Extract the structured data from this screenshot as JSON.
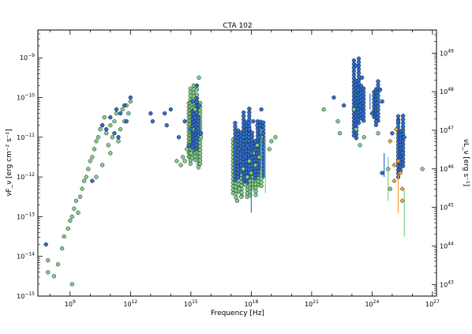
{
  "chart_data": {
    "type": "scatter",
    "title": "CTA 102",
    "xlabel": "Frequency [Hz]",
    "ylabel": "νF_ν [erg cm⁻² s⁻¹]",
    "ylabel_right": "νL_ν [erg s⁻¹]",
    "x_scale": "log",
    "y_scale": "log",
    "xlim_log10": [
      7.4,
      27.2
    ],
    "ylim_log10": [
      -15.0,
      -8.3
    ],
    "y2lim_log10": [
      42.7,
      49.6
    ],
    "grid": false,
    "x_ticks": [
      {
        "exp": 9,
        "base": "10",
        "sup": "9"
      },
      {
        "exp": 12,
        "base": "10",
        "sup": "12"
      },
      {
        "exp": 15,
        "base": "10",
        "sup": "15"
      },
      {
        "exp": 18,
        "base": "10",
        "sup": "18"
      },
      {
        "exp": 21,
        "base": "10",
        "sup": "21"
      },
      {
        "exp": 24,
        "base": "10",
        "sup": "24"
      },
      {
        "exp": 27,
        "base": "10",
        "sup": "27"
      }
    ],
    "y_ticks": [
      {
        "exp": -15,
        "base": "10",
        "sup": "−15"
      },
      {
        "exp": -14,
        "base": "10",
        "sup": "−14"
      },
      {
        "exp": -13,
        "base": "10",
        "sup": "−13"
      },
      {
        "exp": -12,
        "base": "10",
        "sup": "−12"
      },
      {
        "exp": -11,
        "base": "10",
        "sup": "−11"
      },
      {
        "exp": -10,
        "base": "10",
        "sup": "−10"
      },
      {
        "exp": -9,
        "base": "10",
        "sup": "−9"
      }
    ],
    "y2_ticks": [
      {
        "exp": 43,
        "base": "10",
        "sup": "43"
      },
      {
        "exp": 44,
        "base": "10",
        "sup": "44"
      },
      {
        "exp": 45,
        "base": "10",
        "sup": "45"
      },
      {
        "exp": 46,
        "base": "10",
        "sup": "46"
      },
      {
        "exp": 47,
        "base": "10",
        "sup": "47"
      },
      {
        "exp": 48,
        "base": "10",
        "sup": "48"
      },
      {
        "exp": 49,
        "base": "10",
        "sup": "49"
      }
    ],
    "colors": {
      "green": "#7fd08a",
      "blue": "#2e6fcf",
      "orange": "#f4a23a",
      "edge": "#1a1a1a"
    },
    "series": [
      {
        "color_key": "green",
        "points": [
          [
            7.9,
            -14.1
          ],
          [
            7.9,
            -14.4
          ],
          [
            8.2,
            -14.5
          ],
          [
            8.4,
            -14.2
          ],
          [
            8.6,
            -13.8
          ],
          [
            8.7,
            -13.5
          ],
          [
            8.9,
            -13.3
          ],
          [
            9.0,
            -13.1
          ],
          [
            9.1,
            -13.0
          ],
          [
            9.2,
            -12.8
          ],
          [
            9.3,
            -12.6
          ],
          [
            9.4,
            -12.9
          ],
          [
            9.5,
            -12.5
          ],
          [
            9.6,
            -12.3
          ],
          [
            9.7,
            -12.1
          ],
          [
            9.8,
            -12.0
          ],
          [
            9.9,
            -11.8
          ],
          [
            10.0,
            -11.6
          ],
          [
            10.1,
            -11.5
          ],
          [
            10.2,
            -11.3
          ],
          [
            10.3,
            -11.1
          ],
          [
            10.4,
            -11.0
          ],
          [
            10.5,
            -10.8
          ],
          [
            10.6,
            -10.7
          ],
          [
            10.7,
            -10.5
          ],
          [
            10.8,
            -10.9
          ],
          [
            10.9,
            -11.2
          ],
          [
            11.0,
            -10.7
          ],
          [
            11.1,
            -11.0
          ],
          [
            11.2,
            -10.6
          ],
          [
            11.3,
            -10.4
          ],
          [
            11.4,
            -11.1
          ],
          [
            11.5,
            -10.8
          ],
          [
            11.6,
            -10.3
          ],
          [
            11.7,
            -10.6
          ],
          [
            11.8,
            -10.2
          ],
          [
            11.9,
            -10.4
          ],
          [
            12.0,
            -10.1
          ],
          [
            9.1,
            -14.7
          ],
          [
            10.3,
            -12.0
          ],
          [
            10.6,
            -11.7
          ],
          [
            11.0,
            -11.4
          ],
          [
            14.3,
            -11.6
          ],
          [
            14.5,
            -11.7
          ],
          [
            14.6,
            -11.5
          ],
          [
            14.7,
            -11.6
          ],
          [
            14.8,
            -11.3
          ],
          [
            15.0,
            -11.4
          ],
          [
            15.1,
            -10.8
          ],
          [
            15.2,
            -10.3
          ],
          [
            15.3,
            -9.8
          ],
          [
            15.4,
            -9.5
          ],
          [
            15.5,
            -11.0
          ],
          [
            17.3,
            -12.6
          ],
          [
            17.4,
            -12.3
          ],
          [
            17.5,
            -12.5
          ],
          [
            17.6,
            -11.8
          ],
          [
            17.7,
            -12.2
          ],
          [
            17.8,
            -12.0
          ],
          [
            17.9,
            -11.6
          ],
          [
            18.0,
            -11.9
          ],
          [
            18.1,
            -11.4
          ],
          [
            18.2,
            -11.7
          ],
          [
            18.3,
            -11.2
          ],
          [
            18.4,
            -11.5
          ],
          [
            18.5,
            -11.0
          ],
          [
            18.9,
            -11.3
          ],
          [
            19.0,
            -11.1
          ],
          [
            19.2,
            -11.0
          ],
          [
            21.6,
            -10.3
          ],
          [
            22.3,
            -10.6
          ],
          [
            22.4,
            -10.9
          ],
          [
            23.1,
            -10.3
          ],
          [
            23.2,
            -10.8
          ],
          [
            23.4,
            -11.2
          ],
          [
            23.6,
            -11.0
          ],
          [
            24.3,
            -10.9
          ],
          [
            24.8,
            -11.8
          ],
          [
            24.9,
            -12.3
          ],
          [
            26.5,
            -11.8
          ]
        ]
      },
      {
        "color_key": "blue",
        "points": [
          [
            7.8,
            -13.7
          ],
          [
            10.1,
            -12.1
          ],
          [
            10.6,
            -10.7
          ],
          [
            10.8,
            -10.8
          ],
          [
            11.0,
            -10.5
          ],
          [
            11.2,
            -10.9
          ],
          [
            11.3,
            -10.3
          ],
          [
            11.5,
            -10.4
          ],
          [
            11.7,
            -10.2
          ],
          [
            11.8,
            -10.6
          ],
          [
            12.0,
            -10.0
          ],
          [
            11.4,
            -11.0
          ],
          [
            13.0,
            -10.4
          ],
          [
            13.1,
            -10.6
          ],
          [
            13.7,
            -10.4
          ],
          [
            13.8,
            -10.7
          ],
          [
            14.0,
            -10.3
          ],
          [
            14.4,
            -11.0
          ],
          [
            14.7,
            -10.6
          ],
          [
            14.9,
            -11.2
          ],
          [
            15.0,
            -10.8
          ],
          [
            15.1,
            -10.1
          ],
          [
            15.2,
            -10.5
          ],
          [
            15.3,
            -9.7
          ],
          [
            15.4,
            -10.2
          ],
          [
            15.5,
            -10.9
          ],
          [
            15.2,
            -11.3
          ],
          [
            17.4,
            -11.3
          ],
          [
            17.5,
            -11.7
          ],
          [
            17.6,
            -11.0
          ],
          [
            17.7,
            -11.5
          ],
          [
            17.8,
            -11.2
          ],
          [
            17.9,
            -10.8
          ],
          [
            18.0,
            -11.4
          ],
          [
            18.1,
            -10.6
          ],
          [
            18.2,
            -11.1
          ],
          [
            18.3,
            -10.7
          ],
          [
            18.4,
            -11.0
          ],
          [
            18.5,
            -10.3
          ],
          [
            18.6,
            -10.9
          ],
          [
            22.1,
            -10.0
          ],
          [
            22.6,
            -10.2
          ],
          [
            23.2,
            -9.2
          ],
          [
            23.3,
            -9.8
          ],
          [
            23.4,
            -10.2
          ],
          [
            23.5,
            -9.5
          ],
          [
            24.0,
            -10.4
          ],
          [
            24.2,
            -10.6
          ],
          [
            24.4,
            -9.8
          ],
          [
            24.5,
            -10.1
          ],
          [
            25.0,
            -10.9
          ],
          [
            25.3,
            -10.6
          ],
          [
            25.5,
            -11.4
          ],
          [
            25.6,
            -11.0
          ],
          [
            24.5,
            -11.9
          ]
        ]
      },
      {
        "color_key": "orange",
        "points": [
          [
            24.9,
            -11.1
          ],
          [
            25.1,
            -11.7
          ],
          [
            25.3,
            -11.6
          ],
          [
            25.4,
            -11.9
          ],
          [
            25.5,
            -12.6
          ],
          [
            25.5,
            -12.3
          ],
          [
            25.2,
            -10.8
          ],
          [
            25.1,
            -12.1
          ]
        ]
      }
    ],
    "bands": [
      {
        "color_key": "green",
        "x": [
          14.9,
          15.5
        ],
        "y": [
          -11.8,
          -9.6
        ],
        "step": 0.08
      },
      {
        "color_key": "blue",
        "x": [
          15.1,
          15.4
        ],
        "y": [
          -11.3,
          -9.9
        ],
        "step": 0.09
      },
      {
        "color_key": "green",
        "x": [
          17.1,
          18.6
        ],
        "y": [
          -12.6,
          -10.9
        ],
        "step": 0.14
      },
      {
        "color_key": "blue",
        "x": [
          17.2,
          18.6
        ],
        "y": [
          -12.2,
          -10.2
        ],
        "step": 0.14
      },
      {
        "color_key": "blue",
        "x": [
          23.1,
          23.6
        ],
        "y": [
          -11.1,
          -8.7
        ],
        "step": 0.12
      },
      {
        "color_key": "blue",
        "x": [
          24.1,
          24.3
        ],
        "y": [
          -10.7,
          -9.4
        ],
        "step": 0.1
      },
      {
        "color_key": "blue",
        "x": [
          25.3,
          25.6
        ],
        "y": [
          -12.2,
          -10.2
        ],
        "step": 0.12
      }
    ],
    "error_bars": [
      {
        "x": 18.5,
        "y": [
          -12.2,
          -10.8
        ],
        "color_key": "green"
      },
      {
        "x": 18.7,
        "y": [
          -12.4,
          -11.0
        ],
        "color_key": "green"
      },
      {
        "x": 18.0,
        "y": [
          -12.9,
          -11.5
        ],
        "color_key": "blue"
      },
      {
        "x": 24.8,
        "y": [
          -12.6,
          -11.5
        ],
        "color_key": "green"
      },
      {
        "x": 25.6,
        "y": [
          -13.5,
          -12.3
        ],
        "color_key": "green"
      },
      {
        "x": 25.3,
        "y": [
          -12.9,
          -11.9
        ],
        "color_key": "orange"
      },
      {
        "x": 24.6,
        "y": [
          -12.0,
          -11.4
        ],
        "color_key": "blue"
      },
      {
        "x": 23.9,
        "y": [
          -10.3,
          -9.9
        ],
        "color_key": "blue"
      }
    ]
  }
}
